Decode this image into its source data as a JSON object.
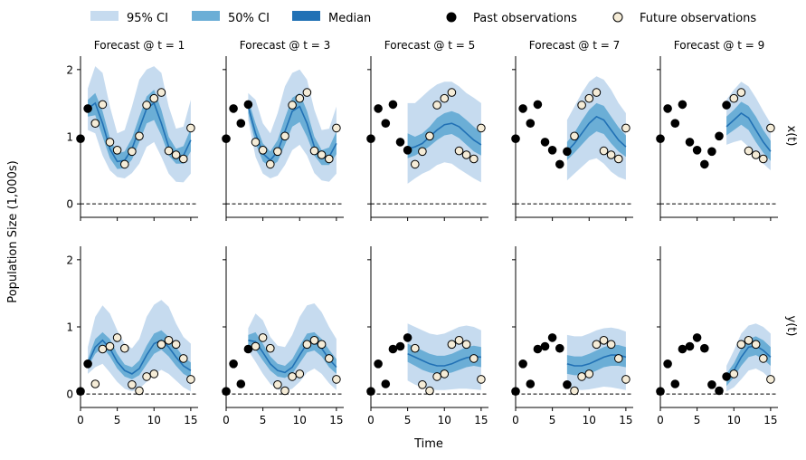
{
  "legend": {
    "items": [
      {
        "label": "95% CI",
        "kind": "patch",
        "color": "#c6dbef"
      },
      {
        "label": "50% CI",
        "kind": "patch",
        "color": "#6baed6"
      },
      {
        "label": "Median",
        "kind": "patch",
        "color": "#2171b5"
      },
      {
        "label": "Past observations",
        "kind": "dot",
        "color": "#000000"
      },
      {
        "label": "Future observations",
        "kind": "dot",
        "color": "#f5ecd7"
      }
    ]
  },
  "ylabel": "Population Size (1,000s)",
  "xlabel": "Time",
  "row_labels": [
    "x(t)",
    "y(t)"
  ],
  "colors": {
    "ci95": "#c6dbef",
    "ci50": "#6baed6",
    "median": "#2171b5",
    "past": "#000000",
    "future": "#f5ecd7"
  },
  "chart_data": {
    "type": "line",
    "description_of_layout": "grid of 2 rows (x(t), y(t)) by 5 forecast columns",
    "forecast_times": [
      1,
      3,
      5,
      7,
      9
    ],
    "panel_titles": [
      "Forecast @ t = 1",
      "Forecast @ t = 3",
      "Forecast @ t = 5",
      "Forecast @ t = 7",
      "Forecast @ t = 9"
    ],
    "xlim": [
      0,
      16
    ],
    "ylim": [
      -0.2,
      2.2
    ],
    "xticks": [
      0,
      5,
      10,
      15
    ],
    "yticks": [
      0,
      1,
      2
    ],
    "reference_line_y": 0,
    "observations": {
      "t": [
        0,
        1,
        2,
        3,
        4,
        5,
        6,
        7,
        8,
        9,
        10,
        11,
        12,
        13,
        14,
        15
      ],
      "x": [
        0.97,
        1.42,
        1.2,
        1.48,
        0.92,
        0.8,
        0.59,
        0.78,
        1.01,
        1.47,
        1.57,
        1.66,
        0.79,
        0.73,
        0.67,
        1.13
      ],
      "y": [
        0.04,
        0.45,
        0.15,
        0.67,
        0.71,
        0.84,
        0.68,
        0.14,
        0.05,
        0.26,
        0.3,
        0.74,
        0.8,
        0.74,
        0.53,
        0.22
      ]
    },
    "forecasts": [
      {
        "t0": 1,
        "x": {
          "t": [
            1,
            2,
            3,
            4,
            5,
            6,
            7,
            8,
            9,
            10,
            11,
            12,
            13,
            14,
            15
          ],
          "median": [
            1.42,
            1.5,
            1.2,
            0.82,
            0.63,
            0.65,
            0.82,
            1.12,
            1.42,
            1.5,
            1.2,
            0.85,
            0.7,
            0.72,
            0.95
          ],
          "lo50": [
            1.3,
            1.32,
            1.0,
            0.68,
            0.52,
            0.53,
            0.66,
            0.92,
            1.2,
            1.25,
            1.02,
            0.72,
            0.6,
            0.6,
            0.78
          ],
          "hi50": [
            1.55,
            1.65,
            1.38,
            0.98,
            0.75,
            0.78,
            0.98,
            1.3,
            1.6,
            1.7,
            1.4,
            1.0,
            0.82,
            0.86,
            1.12
          ],
          "lo95": [
            1.1,
            1.05,
            0.72,
            0.5,
            0.4,
            0.38,
            0.46,
            0.6,
            0.85,
            0.92,
            0.7,
            0.45,
            0.33,
            0.32,
            0.45
          ],
          "hi95": [
            1.72,
            2.05,
            1.95,
            1.45,
            1.05,
            1.1,
            1.45,
            1.85,
            2.0,
            2.05,
            1.95,
            1.45,
            1.12,
            1.15,
            1.55
          ]
        },
        "y": {
          "t": [
            1,
            2,
            3,
            4,
            5,
            6,
            7,
            8,
            9,
            10,
            11,
            12,
            13,
            14,
            15
          ],
          "median": [
            0.45,
            0.7,
            0.8,
            0.68,
            0.48,
            0.35,
            0.3,
            0.38,
            0.58,
            0.75,
            0.8,
            0.7,
            0.55,
            0.42,
            0.35
          ],
          "lo50": [
            0.4,
            0.6,
            0.7,
            0.56,
            0.38,
            0.26,
            0.22,
            0.28,
            0.44,
            0.6,
            0.66,
            0.56,
            0.42,
            0.3,
            0.24
          ],
          "hi50": [
            0.52,
            0.82,
            0.92,
            0.82,
            0.6,
            0.44,
            0.4,
            0.5,
            0.72,
            0.9,
            0.95,
            0.85,
            0.7,
            0.55,
            0.47
          ],
          "lo95": [
            0.3,
            0.4,
            0.45,
            0.32,
            0.18,
            0.08,
            0.04,
            0.08,
            0.18,
            0.3,
            0.36,
            0.3,
            0.2,
            0.1,
            0.04
          ],
          "hi95": [
            0.7,
            1.15,
            1.32,
            1.2,
            0.95,
            0.75,
            0.68,
            0.82,
            1.15,
            1.33,
            1.4,
            1.3,
            1.05,
            0.85,
            0.75
          ]
        }
      },
      {
        "t0": 3,
        "x": {
          "t": [
            3,
            4,
            5,
            6,
            7,
            8,
            9,
            10,
            11,
            12,
            13,
            14,
            15
          ],
          "median": [
            1.45,
            1.05,
            0.75,
            0.65,
            0.78,
            1.08,
            1.38,
            1.45,
            1.2,
            0.85,
            0.68,
            0.7,
            0.9
          ],
          "lo50": [
            1.35,
            0.9,
            0.63,
            0.55,
            0.63,
            0.88,
            1.15,
            1.22,
            1.0,
            0.72,
            0.58,
            0.58,
            0.74
          ],
          "hi50": [
            1.55,
            1.2,
            0.9,
            0.78,
            0.95,
            1.28,
            1.58,
            1.65,
            1.38,
            1.0,
            0.8,
            0.84,
            1.08
          ],
          "lo95": [
            1.25,
            0.7,
            0.45,
            0.38,
            0.42,
            0.58,
            0.8,
            0.88,
            0.72,
            0.46,
            0.35,
            0.33,
            0.45
          ],
          "hi95": [
            1.65,
            1.55,
            1.2,
            1.05,
            1.35,
            1.75,
            1.95,
            2.0,
            1.85,
            1.4,
            1.1,
            1.12,
            1.45
          ]
        },
        "y": {
          "t": [
            3,
            4,
            5,
            6,
            7,
            8,
            9,
            10,
            11,
            12,
            13,
            14,
            15
          ],
          "median": [
            0.8,
            0.78,
            0.62,
            0.45,
            0.35,
            0.32,
            0.4,
            0.58,
            0.75,
            0.78,
            0.68,
            0.52,
            0.4
          ],
          "lo50": [
            0.73,
            0.66,
            0.5,
            0.35,
            0.26,
            0.24,
            0.3,
            0.46,
            0.62,
            0.65,
            0.56,
            0.4,
            0.3
          ],
          "hi50": [
            0.88,
            0.92,
            0.75,
            0.56,
            0.45,
            0.42,
            0.52,
            0.72,
            0.9,
            0.92,
            0.82,
            0.66,
            0.52
          ],
          "lo95": [
            0.65,
            0.48,
            0.3,
            0.15,
            0.07,
            0.04,
            0.08,
            0.18,
            0.32,
            0.38,
            0.3,
            0.16,
            0.06
          ],
          "hi95": [
            0.98,
            1.2,
            1.1,
            0.85,
            0.72,
            0.7,
            0.88,
            1.15,
            1.32,
            1.35,
            1.22,
            1.0,
            0.82
          ]
        }
      },
      {
        "t0": 5,
        "x": {
          "t": [
            5,
            6,
            7,
            8,
            9,
            10,
            11,
            12,
            13,
            14,
            15
          ],
          "median": [
            0.82,
            0.85,
            0.9,
            1.0,
            1.1,
            1.18,
            1.2,
            1.15,
            1.05,
            0.95,
            0.88
          ],
          "lo50": [
            0.68,
            0.72,
            0.78,
            0.86,
            0.95,
            1.02,
            1.04,
            0.98,
            0.88,
            0.78,
            0.72
          ],
          "hi50": [
            1.05,
            1.0,
            1.05,
            1.15,
            1.28,
            1.35,
            1.38,
            1.34,
            1.25,
            1.15,
            1.06
          ],
          "lo95": [
            0.3,
            0.38,
            0.45,
            0.5,
            0.58,
            0.62,
            0.6,
            0.52,
            0.45,
            0.38,
            0.32
          ],
          "hi95": [
            1.5,
            1.5,
            1.6,
            1.7,
            1.78,
            1.82,
            1.82,
            1.75,
            1.65,
            1.58,
            1.5
          ]
        },
        "y": {
          "t": [
            5,
            6,
            7,
            8,
            9,
            10,
            11,
            12,
            13,
            14,
            15
          ],
          "median": [
            0.6,
            0.55,
            0.5,
            0.45,
            0.42,
            0.42,
            0.45,
            0.5,
            0.54,
            0.56,
            0.55
          ],
          "lo50": [
            0.48,
            0.42,
            0.36,
            0.32,
            0.3,
            0.3,
            0.32,
            0.36,
            0.4,
            0.42,
            0.4
          ],
          "hi50": [
            0.75,
            0.7,
            0.65,
            0.6,
            0.57,
            0.57,
            0.6,
            0.65,
            0.7,
            0.72,
            0.7
          ],
          "lo95": [
            0.2,
            0.14,
            0.1,
            0.07,
            0.06,
            0.06,
            0.07,
            0.08,
            0.08,
            0.07,
            0.06
          ],
          "hi95": [
            1.05,
            1.0,
            0.95,
            0.9,
            0.88,
            0.9,
            0.95,
            1.0,
            1.02,
            1.0,
            0.95
          ]
        }
      },
      {
        "t0": 7,
        "x": {
          "t": [
            7,
            8,
            9,
            10,
            11,
            12,
            13,
            14,
            15
          ],
          "median": [
            0.78,
            0.9,
            1.05,
            1.2,
            1.3,
            1.25,
            1.1,
            0.95,
            0.85
          ],
          "lo50": [
            0.65,
            0.76,
            0.88,
            1.0,
            1.08,
            1.04,
            0.9,
            0.78,
            0.7
          ],
          "hi50": [
            0.92,
            1.06,
            1.24,
            1.4,
            1.5,
            1.46,
            1.3,
            1.14,
            1.02
          ],
          "lo95": [
            0.35,
            0.45,
            0.55,
            0.65,
            0.68,
            0.6,
            0.48,
            0.4,
            0.36
          ],
          "hi95": [
            1.25,
            1.45,
            1.65,
            1.82,
            1.9,
            1.85,
            1.7,
            1.5,
            1.35
          ]
        },
        "y": {
          "t": [
            7,
            8,
            9,
            10,
            11,
            12,
            13,
            14,
            15
          ],
          "median": [
            0.45,
            0.42,
            0.42,
            0.45,
            0.5,
            0.55,
            0.58,
            0.58,
            0.55
          ],
          "lo50": [
            0.3,
            0.28,
            0.28,
            0.3,
            0.35,
            0.4,
            0.42,
            0.42,
            0.4
          ],
          "hi50": [
            0.58,
            0.56,
            0.56,
            0.6,
            0.65,
            0.7,
            0.73,
            0.73,
            0.7
          ],
          "lo95": [
            0.1,
            0.07,
            0.06,
            0.07,
            0.09,
            0.11,
            0.1,
            0.08,
            0.06
          ],
          "hi95": [
            0.88,
            0.86,
            0.86,
            0.9,
            0.95,
            0.98,
            0.99,
            0.97,
            0.93
          ]
        }
      },
      {
        "t0": 9,
        "x": {
          "t": [
            9,
            10,
            11,
            12,
            13,
            14,
            15
          ],
          "median": [
            1.15,
            1.25,
            1.35,
            1.28,
            1.1,
            0.92,
            0.78
          ],
          "lo50": [
            1.02,
            1.1,
            1.18,
            1.1,
            0.92,
            0.76,
            0.64
          ],
          "hi50": [
            1.3,
            1.4,
            1.52,
            1.46,
            1.3,
            1.1,
            0.94
          ],
          "lo95": [
            0.88,
            0.92,
            0.95,
            0.85,
            0.7,
            0.6,
            0.5
          ],
          "hi95": [
            1.55,
            1.7,
            1.82,
            1.75,
            1.58,
            1.38,
            1.2
          ]
        },
        "y": {
          "t": [
            9,
            10,
            11,
            12,
            13,
            14,
            15
          ],
          "median": [
            0.2,
            0.35,
            0.55,
            0.7,
            0.72,
            0.65,
            0.55
          ],
          "lo50": [
            0.12,
            0.25,
            0.42,
            0.55,
            0.58,
            0.52,
            0.42
          ],
          "hi50": [
            0.3,
            0.46,
            0.68,
            0.82,
            0.86,
            0.8,
            0.7
          ],
          "lo95": [
            0.04,
            0.1,
            0.22,
            0.35,
            0.38,
            0.32,
            0.22
          ],
          "hi95": [
            0.42,
            0.65,
            0.9,
            1.02,
            1.05,
            1.0,
            0.9
          ]
        }
      }
    ]
  }
}
